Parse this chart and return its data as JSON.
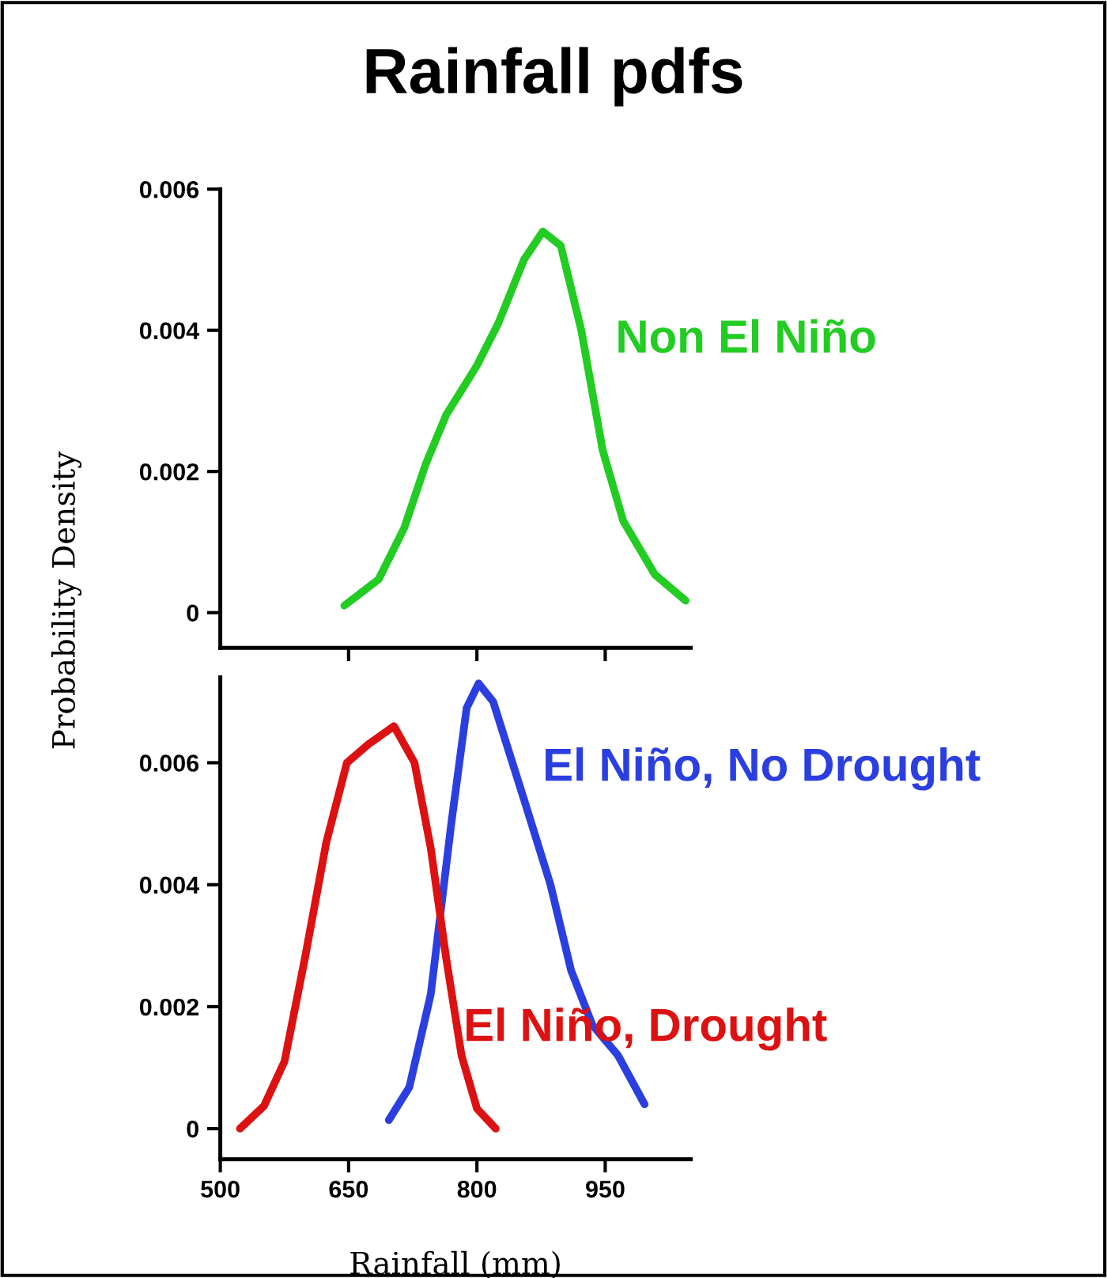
{
  "chart_data": [
    {
      "type": "line",
      "title": "Rainfall pdfs",
      "xlim": [
        500,
        1050
      ],
      "xticks": [
        {
          "value": 650,
          "label": null
        },
        {
          "value": 800,
          "label": null
        },
        {
          "value": 950,
          "label": null
        }
      ],
      "ylim": [
        -0.0005,
        0.006
      ],
      "yticks": [
        {
          "value": 0,
          "label": "0"
        },
        {
          "value": 0.002,
          "label": "0.002"
        },
        {
          "value": 0.004,
          "label": "0.004"
        },
        {
          "value": 0.006,
          "label": "0.006"
        }
      ],
      "tick_labels": "y",
      "grid": false,
      "legend": false,
      "series": [
        {
          "name": "Non El Niño",
          "color": "#22cc22",
          "x": [
            645,
            685,
            715,
            740,
            764,
            800,
            825,
            855,
            877,
            898,
            922,
            947,
            971,
            1008,
            1044
          ],
          "values": [
            0.0001,
            0.00047,
            0.0012,
            0.0021,
            0.0028,
            0.0035,
            0.0041,
            0.005,
            0.0054,
            0.0052,
            0.004,
            0.0023,
            0.0013,
            0.00054,
            0.00017
          ]
        }
      ]
    },
    {
      "type": "line",
      "xlabel": "Rainfall (mm)",
      "ylabel": "Probability Density",
      "xlim": [
        500,
        1050
      ],
      "xticks": [
        500,
        650,
        800,
        950
      ],
      "ylim": [
        -0.0005,
        0.0074
      ],
      "yticks": [
        {
          "value": 0,
          "label": "0"
        },
        {
          "value": 0.002,
          "label": "0.002"
        },
        {
          "value": 0.004,
          "label": "0.004"
        },
        {
          "value": 0.006,
          "label": "0.006"
        }
      ],
      "grid": false,
      "legend": false,
      "series": [
        {
          "name": "El Niño, No Drought",
          "color": "#2b3fe0",
          "x": [
            697,
            721,
            746,
            770,
            788,
            802,
            819,
            855,
            886,
            910,
            935,
            965,
            996
          ],
          "values": [
            0.00014,
            0.00068,
            0.0022,
            0.005,
            0.0069,
            0.0073,
            0.007,
            0.0054,
            0.004,
            0.0026,
            0.0017,
            0.0012,
            0.0004
          ]
        },
        {
          "name": "El Niño, Drought",
          "color": "#dd1111",
          "x": [
            523,
            551,
            575,
            599,
            624,
            648,
            673,
            703,
            727,
            746,
            764,
            782,
            800,
            822
          ],
          "values": [
            0.0,
            0.00037,
            0.0011,
            0.0028,
            0.0047,
            0.006,
            0.0063,
            0.0066,
            0.006,
            0.0046,
            0.0028,
            0.0012,
            0.00033,
            0.0
          ]
        }
      ]
    }
  ]
}
